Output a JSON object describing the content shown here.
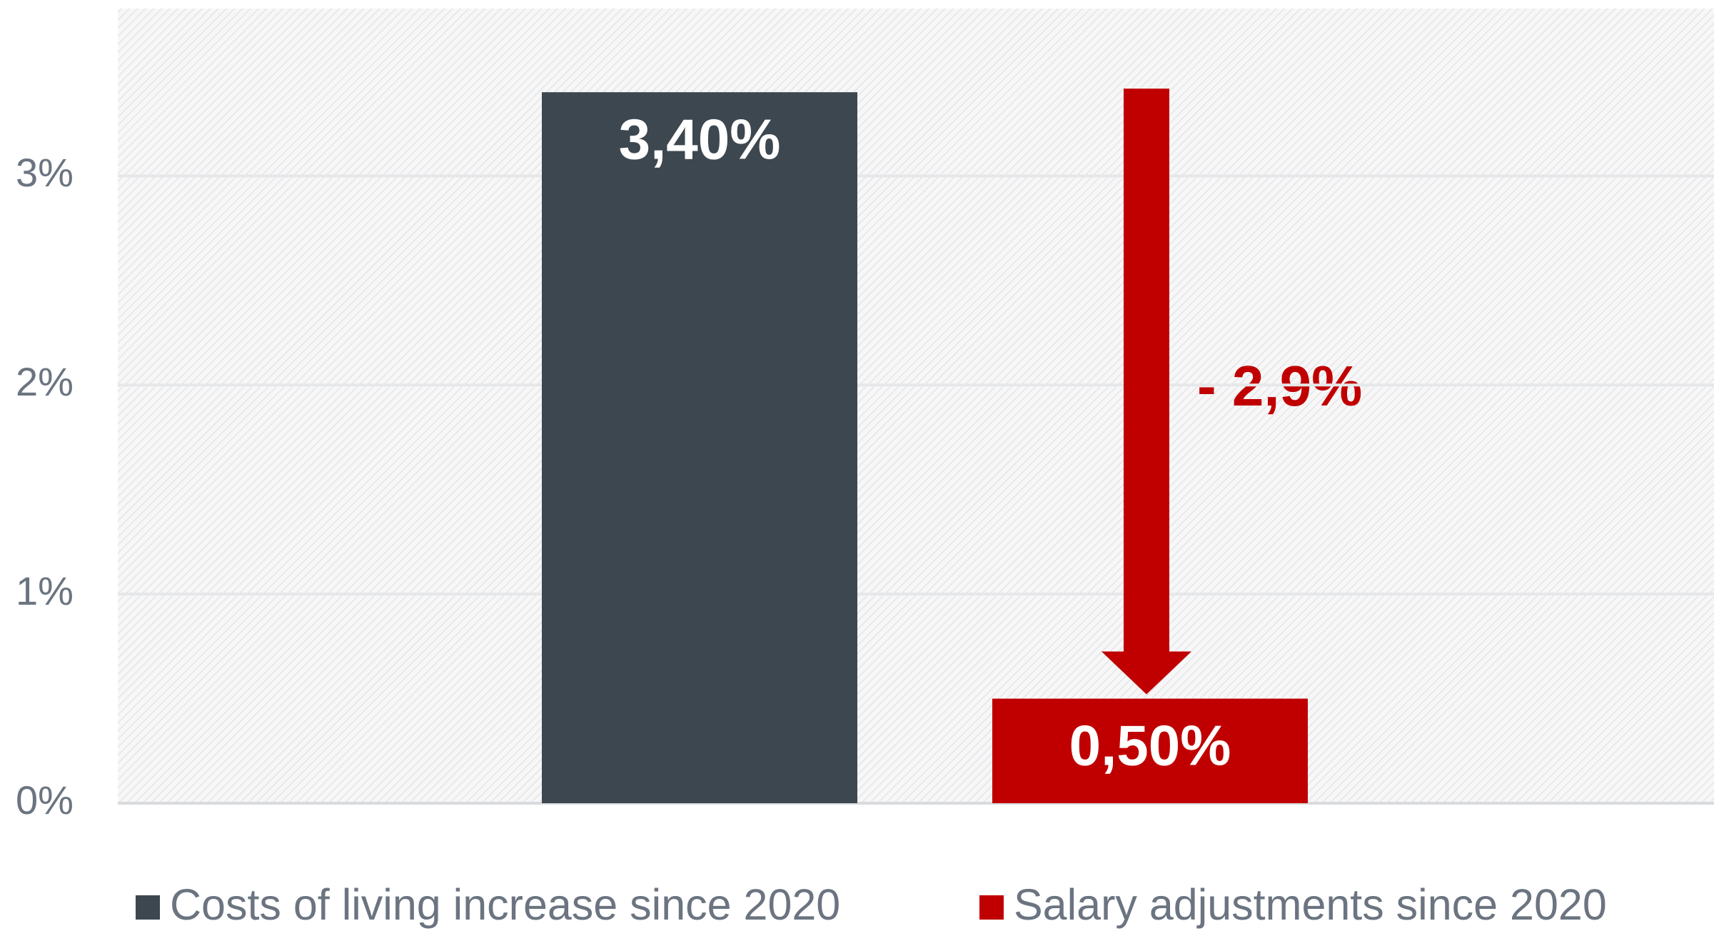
{
  "chart_data": {
    "type": "bar",
    "categories": [
      null
    ],
    "series": [
      {
        "name": "Costs of living increase since 2020",
        "color": "#3d474f",
        "values": [
          3.4
        ],
        "value_labels": [
          "3,40%"
        ]
      },
      {
        "name": "Salary adjustments since 2020",
        "color": "#c00000",
        "values": [
          0.5
        ],
        "value_labels": [
          "0,50%"
        ]
      }
    ],
    "annotations": [
      "- 2,9%"
    ],
    "ylim": [
      0,
      3.8
    ],
    "yticks": [
      {
        "value": 0,
        "label": "0%"
      },
      {
        "value": 1,
        "label": "1%"
      },
      {
        "value": 2,
        "label": "2%"
      },
      {
        "value": 3,
        "label": "3%"
      }
    ],
    "grid": true,
    "legend": "bottom"
  }
}
